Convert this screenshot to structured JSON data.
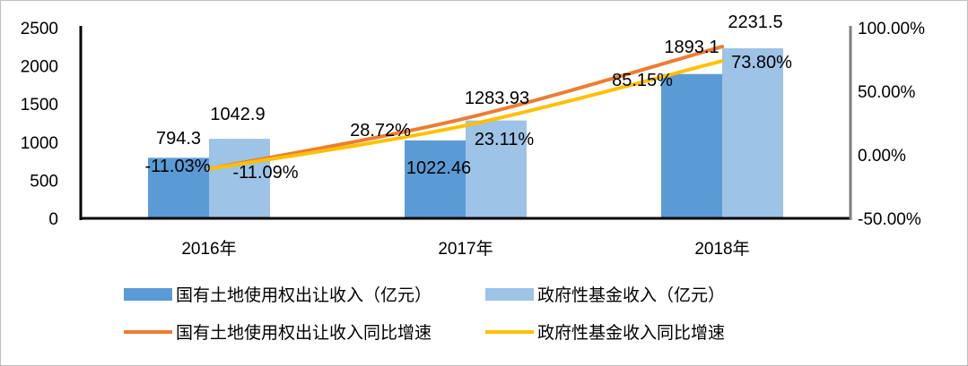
{
  "chart_data": {
    "type": "bar",
    "categories": [
      "2016年",
      "2017年",
      "2018年"
    ],
    "bar_series": [
      {
        "name": "国有土地使用权出让收入（亿元）",
        "values": [
          794.3,
          1022.46,
          1893.1
        ],
        "labels": [
          "794.3",
          "1022.46",
          "1893.1"
        ],
        "color": "#5b9bd5"
      },
      {
        "name": "政府性基金收入（亿元）",
        "values": [
          1042.9,
          1283.93,
          2231.5
        ],
        "labels": [
          "1042.9",
          "1283.93",
          "2231.5"
        ],
        "color": "#9dc3e6"
      }
    ],
    "line_series": [
      {
        "name": "国有土地使用权出让收入同比增速",
        "values": [
          -11.03,
          28.72,
          85.15
        ],
        "labels": [
          "-11.03%",
          "28.72%",
          "85.15%"
        ],
        "color": "#ed7d31"
      },
      {
        "name": "政府性基金收入同比增速",
        "values": [
          -11.09,
          23.11,
          73.8
        ],
        "labels": [
          "-11.09%",
          "23.11%",
          "73.80%"
        ],
        "color": "#ffc000"
      }
    ],
    "y_left": {
      "min": 0,
      "max": 2500,
      "ticks": [
        "0",
        "500",
        "1000",
        "1500",
        "2000",
        "2500"
      ]
    },
    "y_right": {
      "min": -50,
      "max": 100,
      "ticks": [
        "-50.00%",
        "0.00%",
        "50.00%",
        "100.00%"
      ]
    },
    "grid": false,
    "legend_position": "bottom"
  }
}
